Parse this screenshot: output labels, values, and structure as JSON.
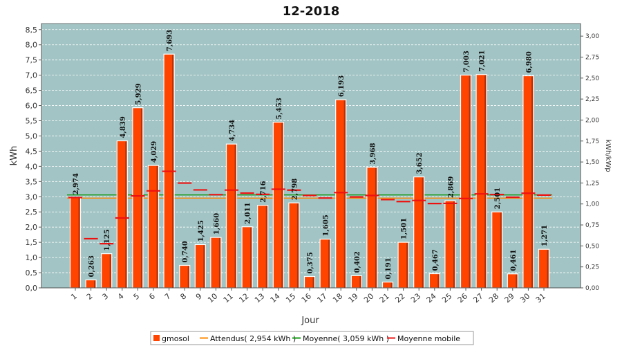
{
  "chart_data": {
    "type": "bar",
    "title": "12-2018",
    "xlabel": "Jour",
    "ylabel": "kWh",
    "ylabel_right": "kWh/kWp",
    "ylim": [
      0,
      8.7
    ],
    "ylim_right": [
      0,
      3.15
    ],
    "yticks": [
      "0,0",
      "0,5",
      "1,0",
      "1,5",
      "2,0",
      "2,5",
      "3,0",
      "3,5",
      "4,0",
      "4,5",
      "5,0",
      "5,5",
      "6,0",
      "6,5",
      "7,0",
      "7,5",
      "8,0",
      "8,5"
    ],
    "yticks_right": [
      "0,00",
      "0,25",
      "0,50",
      "0,75",
      "1,00",
      "1,25",
      "1,50",
      "1,75",
      "2,00",
      "2,25",
      "2,50",
      "2,75",
      "3,00"
    ],
    "categories": [
      "1",
      "2",
      "3",
      "4",
      "5",
      "6",
      "7",
      "8",
      "9",
      "10",
      "11",
      "12",
      "13",
      "14",
      "15",
      "16",
      "17",
      "18",
      "19",
      "20",
      "21",
      "22",
      "23",
      "24",
      "25",
      "26",
      "27",
      "28",
      "29",
      "30",
      "31"
    ],
    "series": [
      {
        "name": "gmosol",
        "color": "#ff4400",
        "values": [
          2.974,
          0.263,
          1.125,
          4.839,
          5.929,
          4.029,
          7.693,
          0.74,
          1.425,
          1.66,
          4.734,
          2.011,
          2.716,
          5.453,
          2.798,
          0.375,
          1.605,
          6.193,
          0.402,
          3.968,
          0.191,
          1.501,
          3.652,
          0.467,
          2.869,
          7.003,
          7.021,
          2.501,
          0.461,
          6.98,
          1.271
        ],
        "labels": [
          "2,974",
          "0,263",
          "1,125",
          "4,839",
          "5,929",
          "4,029",
          "7,693",
          "0,740",
          "1,425",
          "1,660",
          "4,734",
          "2,011",
          "2,716",
          "5,453",
          "2,798",
          "0,375",
          "1,605",
          "6,193",
          "0,402",
          "3,968",
          "0,191",
          "1,501",
          "3,652",
          "0,467",
          "2,869",
          "7,003",
          "7,021",
          "2,501",
          "0,461",
          "6,980",
          "1,271"
        ]
      },
      {
        "name": "Moyenne mobile",
        "color": "#ee1111",
        "values": [
          2.974,
          1.619,
          1.454,
          2.3,
          3.026,
          3.193,
          3.836,
          3.449,
          3.224,
          3.067,
          3.218,
          3.117,
          3.077,
          3.247,
          3.217,
          3.04,
          2.956,
          3.136,
          2.992,
          3.041,
          2.905,
          2.841,
          2.877,
          2.776,
          2.78,
          2.942,
          3.093,
          3.072,
          2.982,
          3.115,
          3.055
        ]
      }
    ],
    "reference_lines": [
      {
        "name": "Attendus( 2,954 kWh )",
        "value": 2.954,
        "color": "#ff8800"
      },
      {
        "name": "Moyenne( 3,059 kWh )",
        "value": 3.059,
        "color": "#119911"
      }
    ],
    "background_color": "#a2c4c4",
    "legend_position": "bottom-center",
    "grid": true
  }
}
